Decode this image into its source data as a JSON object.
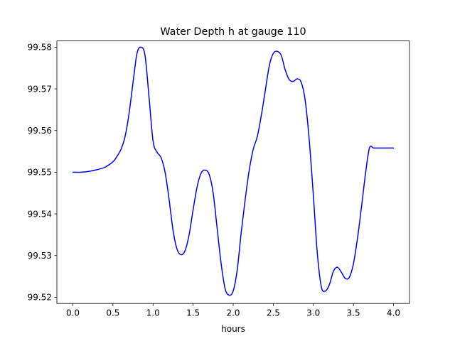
{
  "chart_data": {
    "type": "line",
    "title": "Water Depth h at gauge 110",
    "xlabel": "hours",
    "ylabel": "",
    "xlim": [
      -0.2,
      4.2
    ],
    "ylim": [
      99.5185,
      99.5815
    ],
    "xticks": [
      0.0,
      0.5,
      1.0,
      1.5,
      2.0,
      2.5,
      3.0,
      3.5,
      4.0
    ],
    "xtick_labels": [
      "0.0",
      "0.5",
      "1.0",
      "1.5",
      "2.0",
      "2.5",
      "3.0",
      "3.5",
      "4.0"
    ],
    "yticks": [
      99.52,
      99.53,
      99.54,
      99.55,
      99.56,
      99.57,
      99.58
    ],
    "ytick_labels": [
      "99.52",
      "99.53",
      "99.54",
      "99.55",
      "99.56",
      "99.57",
      "99.58"
    ],
    "grid": false,
    "series": [
      {
        "color": "#0000ff",
        "x": [
          0.0,
          0.1,
          0.2,
          0.3,
          0.4,
          0.5,
          0.55,
          0.6,
          0.65,
          0.7,
          0.75,
          0.8,
          0.85,
          0.9,
          0.95,
          1.0,
          1.05,
          1.1,
          1.15,
          1.2,
          1.25,
          1.3,
          1.35,
          1.4,
          1.45,
          1.5,
          1.55,
          1.6,
          1.65,
          1.7,
          1.75,
          1.8,
          1.85,
          1.9,
          1.95,
          2.0,
          2.05,
          2.1,
          2.15,
          2.2,
          2.25,
          2.3,
          2.35,
          2.4,
          2.45,
          2.5,
          2.55,
          2.6,
          2.65,
          2.7,
          2.75,
          2.8,
          2.85,
          2.9,
          2.95,
          3.0,
          3.05,
          3.1,
          3.15,
          3.2,
          3.25,
          3.3,
          3.35,
          3.4,
          3.45,
          3.5,
          3.55,
          3.6,
          3.65,
          3.7,
          3.75,
          3.8,
          3.85,
          3.9,
          3.95,
          4.0
        ],
        "y": [
          99.55,
          99.55,
          99.5502,
          99.5506,
          99.5512,
          99.5525,
          99.5538,
          99.5555,
          99.5585,
          99.564,
          99.5715,
          99.5785,
          99.58,
          99.578,
          99.568,
          99.5575,
          99.5548,
          99.5535,
          99.55,
          99.5435,
          99.536,
          99.5315,
          99.5302,
          99.5312,
          99.535,
          99.541,
          99.5465,
          99.5498,
          99.5505,
          99.5495,
          99.545,
          99.5365,
          99.528,
          99.522,
          99.5205,
          99.5215,
          99.5265,
          99.5355,
          99.5435,
          99.5505,
          99.5555,
          99.5585,
          99.5635,
          99.5695,
          99.5755,
          99.5785,
          99.579,
          99.578,
          99.5745,
          99.5722,
          99.5718,
          99.5724,
          99.5715,
          99.567,
          99.5575,
          99.5445,
          99.5305,
          99.5225,
          99.5215,
          99.523,
          99.5262,
          99.5272,
          99.526,
          99.5245,
          99.5248,
          99.528,
          99.534,
          99.5415,
          99.5495,
          99.5558,
          99.5558,
          99.5558,
          99.5558,
          99.5558,
          99.5558,
          99.5558
        ]
      }
    ]
  }
}
